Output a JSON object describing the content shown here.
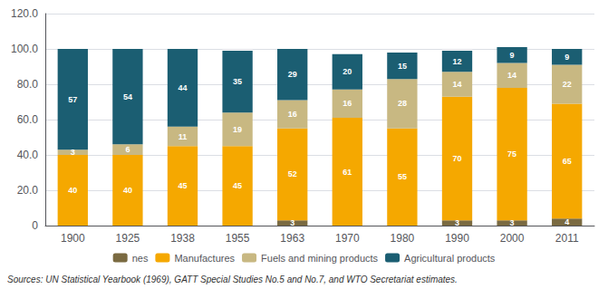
{
  "chart_data": {
    "type": "bar",
    "stacked": true,
    "data_labels": true,
    "grid": true,
    "legend": "bottom",
    "categories": [
      "1900",
      "1925",
      "1938",
      "1955",
      "1963",
      "1970",
      "1980",
      "1990",
      "2000",
      "2011"
    ],
    "series": [
      {
        "name": "nes",
        "color": "#7a6a41",
        "values": [
          0,
          0,
          0,
          0,
          3,
          0,
          0,
          3,
          3,
          4
        ]
      },
      {
        "name": "Manufactures",
        "color": "#f5a800",
        "values": [
          40,
          40,
          45,
          45,
          52,
          61,
          55,
          70,
          75,
          65
        ]
      },
      {
        "name": "Fuels and mining products",
        "color": "#c8b882",
        "values": [
          3,
          6,
          11,
          19,
          16,
          16,
          28,
          14,
          14,
          22
        ]
      },
      {
        "name": "Agricultural products",
        "color": "#1b5e72",
        "values": [
          57,
          54,
          44,
          35,
          29,
          20,
          15,
          12,
          9,
          9
        ]
      }
    ],
    "ylim": [
      0,
      120
    ],
    "yticks": [
      0,
      {
        "value": 20,
        "label": "20.0"
      },
      {
        "value": 40,
        "label": "40.0"
      },
      {
        "value": 60,
        "label": "60.0"
      },
      {
        "value": 80,
        "label": "80.0"
      },
      {
        "value": 100,
        "label": "100.0"
      },
      {
        "value": 120,
        "label": "120.0"
      }
    ],
    "annotations": [
      "Sources: UN Statistical Yearbook (1969), GATT Special Studies No.5 and No.7, and WTO Secretariat estimates."
    ]
  }
}
